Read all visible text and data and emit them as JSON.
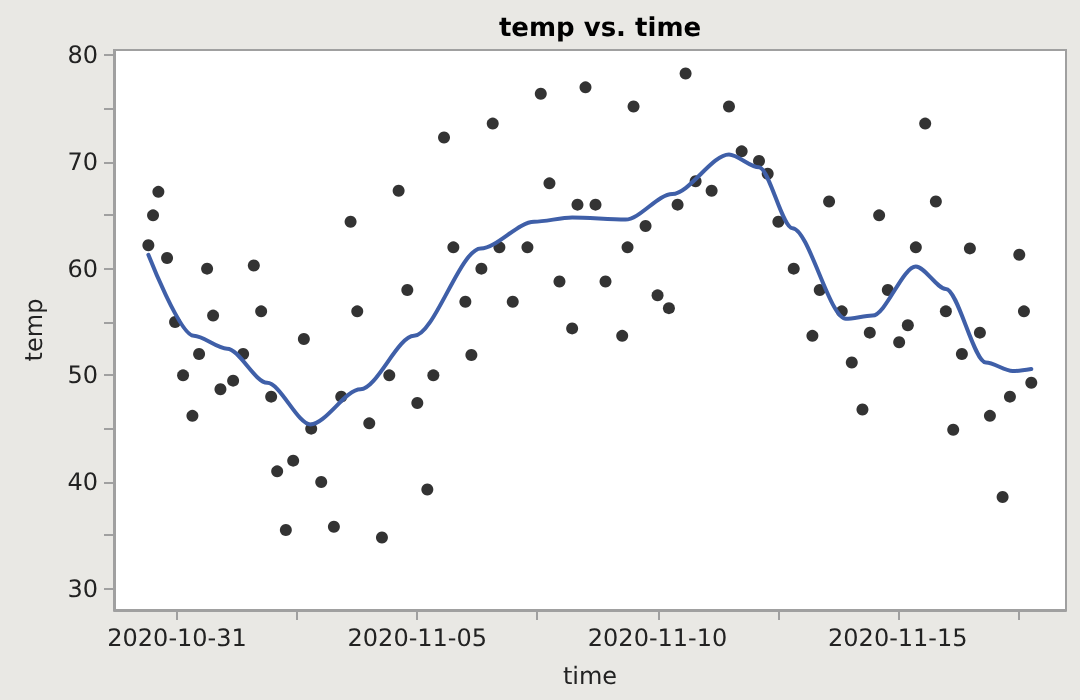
{
  "chart_data": {
    "type": "scatter",
    "title": "temp vs. time",
    "xlabel": "time",
    "ylabel": "temp",
    "xlim": [
      "2020-10-29T16:30",
      "2020-11-18T12:00"
    ],
    "xticks": [
      {
        "value": "2020-10-31",
        "label": "2020-10-31"
      },
      {
        "value": "2020-11-02T12:00",
        "label": null
      },
      {
        "value": "2020-11-05",
        "label": "2020-11-05"
      },
      {
        "value": "2020-11-07T12:00",
        "label": null
      },
      {
        "value": "2020-11-10",
        "label": "2020-11-10"
      },
      {
        "value": "2020-11-12T12:00",
        "label": null
      },
      {
        "value": "2020-11-15",
        "label": "2020-11-15"
      },
      {
        "value": "2020-11-17T12:00",
        "label": null
      }
    ],
    "ylim": [
      28,
      80.5
    ],
    "yticks": [
      30,
      {
        "value": 35,
        "label": null
      },
      40,
      {
        "value": 45,
        "label": null
      },
      50,
      {
        "value": 55,
        "label": null
      },
      60,
      {
        "value": 65,
        "label": null
      },
      70,
      {
        "value": 75,
        "label": null
      },
      80
    ],
    "grid": false,
    "series": [
      {
        "marker": "circle",
        "color": "#000000",
        "x": [
          "2020-10-30T09:40",
          "2020-10-30T12:00",
          "2020-10-30T14:40",
          "2020-10-30T19:00",
          "2020-10-30T23:00",
          "2020-10-31T03:00",
          "2020-10-31T07:40",
          "2020-10-31T11:00",
          "2020-10-31T15:00",
          "2020-10-31T18:00",
          "2020-10-31T21:40",
          "2020-11-01T04:00",
          "2020-11-01T09:00",
          "2020-11-01T14:20",
          "2020-11-01T18:00",
          "2020-11-01T23:00",
          "2020-11-02T02:00",
          "2020-11-02T06:20",
          "2020-11-02T10:00",
          "2020-11-02T15:20",
          "2020-11-02T19:00",
          "2020-11-03T00:00",
          "2020-11-03T06:20",
          "2020-11-03T10:00",
          "2020-11-03T14:40",
          "2020-11-03T18:00",
          "2020-11-04T00:00",
          "2020-11-04T06:20",
          "2020-11-04T10:00",
          "2020-11-04T14:40",
          "2020-11-04T19:00",
          "2020-11-05T00:00",
          "2020-11-05T05:00",
          "2020-11-05T08:00",
          "2020-11-05T13:20",
          "2020-11-05T18:00",
          "2020-11-06T00:00",
          "2020-11-06T03:00",
          "2020-11-06T08:00",
          "2020-11-06T13:40",
          "2020-11-06T17:00",
          "2020-11-06T23:40",
          "2020-11-07T07:00",
          "2020-11-07T13:40",
          "2020-11-07T18:00",
          "2020-11-07T23:00",
          "2020-11-08T05:20",
          "2020-11-08T08:00",
          "2020-11-08T12:00",
          "2020-11-08T17:00",
          "2020-11-08T22:00",
          "2020-11-09T06:20",
          "2020-11-09T09:00",
          "2020-11-09T12:00",
          "2020-11-09T18:00",
          "2020-11-10T00:00",
          "2020-11-10T05:40",
          "2020-11-10T10:00",
          "2020-11-10T14:00",
          "2020-11-10T19:00",
          "2020-11-11T03:00",
          "2020-11-11T11:40",
          "2020-11-11T18:00",
          "2020-11-12T02:40",
          "2020-11-12T07:00",
          "2020-11-12T12:20",
          "2020-11-12T20:00",
          "2020-11-13T05:20",
          "2020-11-13T09:00",
          "2020-11-13T13:40",
          "2020-11-13T20:00",
          "2020-11-14T01:00",
          "2020-11-14T06:20",
          "2020-11-14T10:00",
          "2020-11-14T14:40",
          "2020-11-14T19:00",
          "2020-11-15T00:40",
          "2020-11-15T05:00",
          "2020-11-15T09:00",
          "2020-11-15T13:40",
          "2020-11-15T19:00",
          "2020-11-16T00:00",
          "2020-11-16T03:40",
          "2020-11-16T08:00",
          "2020-11-16T12:00",
          "2020-11-16T17:00",
          "2020-11-16T22:00",
          "2020-11-17T04:20",
          "2020-11-17T08:00",
          "2020-11-17T12:40",
          "2020-11-17T15:00",
          "2020-11-17T18:40"
        ],
        "values": [
          62.2,
          65,
          67.2,
          61,
          55,
          50,
          46.2,
          52,
          60,
          55.6,
          48.7,
          49.5,
          52,
          60.3,
          56,
          48,
          41,
          35.5,
          42,
          53.4,
          45,
          40,
          35.8,
          48,
          64.4,
          56,
          45.5,
          34.8,
          50,
          67.3,
          58,
          47.4,
          39.3,
          50,
          72.3,
          62,
          56.9,
          51.9,
          60,
          73.6,
          62,
          56.9,
          62,
          76.4,
          68,
          58.8,
          54.4,
          66,
          77,
          66,
          58.8,
          53.7,
          62,
          75.2,
          64,
          57.5,
          56.3,
          66,
          78.3,
          68.2,
          67.3,
          75.2,
          71,
          70.1,
          68.9,
          64.4,
          60,
          53.7,
          58,
          66.3,
          56,
          51.2,
          46.8,
          54,
          65,
          58,
          53.1,
          54.7,
          62,
          73.6,
          66.3,
          56,
          44.9,
          52,
          61.9,
          54,
          46.2,
          38.6,
          48,
          61.3,
          56,
          49.3
        ]
      },
      {
        "type": "line",
        "marker": "none",
        "line_style": "solid",
        "color": "#3f5fa8",
        "x": [
          "2020-10-30T09:40",
          "2020-10-31T08:20",
          "2020-11-01T01:00",
          "2020-11-01T21:00",
          "2020-11-02T18:40",
          "2020-11-03T19:40",
          "2020-11-04T22:20",
          "2020-11-06T07:40",
          "2020-11-07T10:20",
          "2020-11-08T05:20",
          "2020-11-09T08:00",
          "2020-11-10T07:20",
          "2020-11-11T11:40",
          "2020-11-12T02:40",
          "2020-11-12T19:20",
          "2020-11-13T22:00",
          "2020-11-14T11:20",
          "2020-11-15T09:00",
          "2020-11-16T00:00",
          "2020-11-16T20:00",
          "2020-11-17T09:20",
          "2020-11-17T18:40"
        ],
        "values": [
          61.3,
          53.7,
          52.5,
          49.3,
          45.4,
          48.7,
          53.7,
          61.9,
          64.4,
          64.8,
          64.6,
          67,
          70.7,
          69.5,
          63.8,
          55.3,
          55.6,
          60.2,
          58.1,
          51.2,
          50.4,
          50.6
        ]
      }
    ]
  }
}
